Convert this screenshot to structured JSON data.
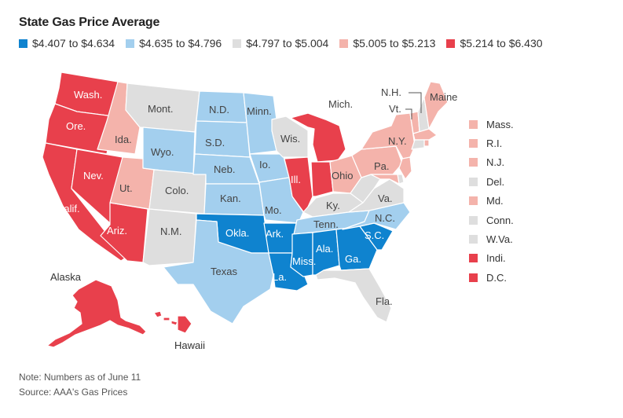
{
  "title": "State Gas Price Average",
  "legend": [
    {
      "label": "$4.407 to $4.634",
      "color": "#0f83cf"
    },
    {
      "label": "$4.635 to $4.796",
      "color": "#a3cfee"
    },
    {
      "label": "$4.797 to $5.004",
      "color": "#dedede"
    },
    {
      "label": "$5.005 to $5.213",
      "color": "#f4b3ab"
    },
    {
      "label": "$5.214 to $6.430",
      "color": "#e8404c"
    }
  ],
  "states": {
    "wa": {
      "label": "Wash.",
      "bin": 4
    },
    "or": {
      "label": "Ore.",
      "bin": 4
    },
    "ca": {
      "label": "Calif.",
      "bin": 4
    },
    "nv": {
      "label": "Nev.",
      "bin": 4
    },
    "az": {
      "label": "Ariz.",
      "bin": 4
    },
    "id": {
      "label": "Ida.",
      "bin": 3
    },
    "ut": {
      "label": "Ut.",
      "bin": 3
    },
    "mt": {
      "label": "Mont.",
      "bin": 2
    },
    "wy": {
      "label": "Wyo.",
      "bin": 1
    },
    "co": {
      "label": "Colo.",
      "bin": 2
    },
    "nm": {
      "label": "N.M.",
      "bin": 2
    },
    "nd": {
      "label": "N.D.",
      "bin": 1
    },
    "sd": {
      "label": "S.D.",
      "bin": 1
    },
    "ne": {
      "label": "Neb.",
      "bin": 1
    },
    "ks": {
      "label": "Kan.",
      "bin": 1
    },
    "ok": {
      "label": "Okla.",
      "bin": 0
    },
    "tx": {
      "label": "Texas",
      "bin": 1
    },
    "mn": {
      "label": "Minn.",
      "bin": 1
    },
    "ia": {
      "label": "Io.",
      "bin": 1
    },
    "mo": {
      "label": "Mo.",
      "bin": 1
    },
    "ar": {
      "label": "Ark.",
      "bin": 0
    },
    "la": {
      "label": "La.",
      "bin": 0
    },
    "wi": {
      "label": "Wis.",
      "bin": 2
    },
    "il": {
      "label": "Ill.",
      "bin": 4
    },
    "mi": {
      "label": "Mich.",
      "bin": 4
    },
    "in": {
      "label": "Indi.",
      "bin": 4
    },
    "oh": {
      "label": "Ohio",
      "bin": 3
    },
    "ky": {
      "label": "Ky.",
      "bin": 2
    },
    "tn": {
      "label": "Tenn.",
      "bin": 1
    },
    "ms": {
      "label": "Miss.",
      "bin": 0
    },
    "al": {
      "label": "Ala.",
      "bin": 0
    },
    "ga": {
      "label": "Ga.",
      "bin": 0
    },
    "fl": {
      "label": "Fla.",
      "bin": 2
    },
    "sc": {
      "label": "S.C.",
      "bin": 0
    },
    "nc": {
      "label": "N.C.",
      "bin": 1
    },
    "va": {
      "label": "Va.",
      "bin": 2
    },
    "wv": {
      "label": "W.Va.",
      "bin": 2
    },
    "pa": {
      "label": "Pa.",
      "bin": 3
    },
    "ny": {
      "label": "N.Y.",
      "bin": 3
    },
    "vt": {
      "label": "Vt.",
      "bin": 3
    },
    "nh": {
      "label": "N.H.",
      "bin": 2
    },
    "me": {
      "label": "Maine",
      "bin": 3
    },
    "ma": {
      "label": "Mass.",
      "bin": 3
    },
    "ri": {
      "label": "R.I.",
      "bin": 3
    },
    "ct": {
      "label": "Conn.",
      "bin": 2
    },
    "nj": {
      "label": "N.J.",
      "bin": 3
    },
    "de": {
      "label": "Del.",
      "bin": 2
    },
    "md": {
      "label": "Md.",
      "bin": 3
    },
    "ak": {
      "label": "Alaska",
      "bin": 4
    },
    "hi": {
      "label": "Hawaii",
      "bin": 4
    }
  },
  "small_states_list": [
    "ma",
    "ri",
    "nj",
    "de",
    "md",
    "ct",
    "wv",
    "in",
    "dc"
  ],
  "small_state_labels": {
    "ma": "Mass.",
    "ri": "R.I.",
    "nj": "N.J.",
    "de": "Del.",
    "md": "Md.",
    "ct": "Conn.",
    "wv": "W.Va.",
    "in": "Indi.",
    "dc": "D.C."
  },
  "small_state_bins": {
    "ma": 3,
    "ri": 3,
    "nj": 3,
    "de": 2,
    "md": 3,
    "ct": 2,
    "wv": 2,
    "in": 4,
    "dc": 4
  },
  "footer": {
    "note": "Note: Numbers as of June 11",
    "source": "Source: AAA's Gas Prices"
  }
}
